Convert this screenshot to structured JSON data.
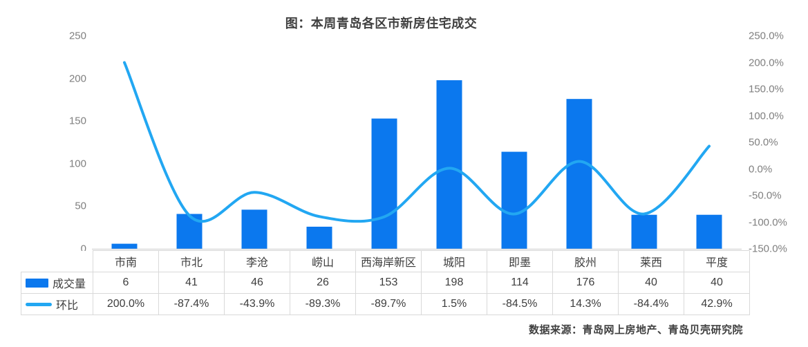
{
  "title": "图：本周青岛各区市新房住宅成交",
  "source_note": "数据来源：青岛网上房地产、青岛贝壳研究院",
  "colors": {
    "bar": "#0b78ee",
    "line": "#22a7f2",
    "axis_text": "#7f7f7f",
    "table_border": "#d9d9d9",
    "axis_line": "#d9d9d9",
    "text": "#3d3d3d"
  },
  "chart_data": {
    "type": "bar+line",
    "title": "图：本周青岛各区市新房住宅成交",
    "categories": [
      "市南",
      "市北",
      "李沧",
      "崂山",
      "西海岸新区",
      "城阳",
      "即墨",
      "胶州",
      "莱西",
      "平度"
    ],
    "series": [
      {
        "name": "成交量",
        "type": "bar",
        "axis": "left",
        "values": [
          6,
          41,
          46,
          26,
          153,
          198,
          114,
          176,
          40,
          40
        ],
        "labels": [
          "6",
          "41",
          "46",
          "26",
          "153",
          "198",
          "114",
          "176",
          "40",
          "40"
        ]
      },
      {
        "name": "环比",
        "type": "line",
        "axis": "right",
        "values_percent": [
          200.0,
          -87.4,
          -43.9,
          -89.3,
          -89.7,
          1.5,
          -84.5,
          14.3,
          -84.4,
          42.9
        ],
        "labels": [
          "200.0%",
          "-87.4%",
          "-43.9%",
          "-89.3%",
          "-89.7%",
          "1.5%",
          "-84.5%",
          "14.3%",
          "-84.4%",
          "42.9%"
        ]
      }
    ],
    "left_axis": {
      "min": 0,
      "max": 250,
      "tick_step": 50,
      "tick_labels": [
        "0",
        "50",
        "100",
        "150",
        "200",
        "250"
      ]
    },
    "right_axis": {
      "min": -150,
      "max": 250,
      "tick_step": 50,
      "tick_labels": [
        "-150.0%",
        "-100.0%",
        "-50.0%",
        "0.0%",
        "50.0%",
        "100.0%",
        "150.0%",
        "200.0%",
        "250.0%"
      ]
    },
    "grid": "off",
    "legend_position": "table-left"
  }
}
